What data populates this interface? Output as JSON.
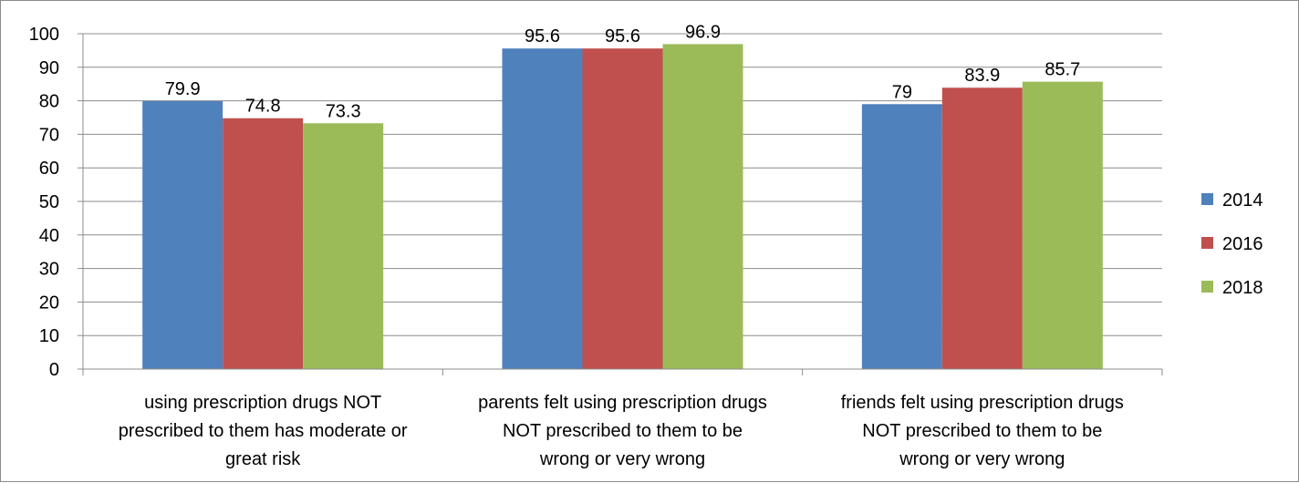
{
  "chart_data": {
    "type": "bar",
    "title": "",
    "xlabel": "",
    "ylabel": "",
    "ylim": [
      0,
      100
    ],
    "yticks": [
      0,
      10,
      20,
      30,
      40,
      50,
      60,
      70,
      80,
      90,
      100
    ],
    "grid": true,
    "legend_position": "right",
    "categories": [
      [
        "using prescription drugs NOT",
        "prescribed to them has moderate or",
        "great risk"
      ],
      [
        "parents felt using prescription drugs",
        "NOT prescribed to them to be",
        "wrong or very wrong"
      ],
      [
        "friends felt using prescription drugs",
        "NOT prescribed to them to be",
        "wrong or very wrong"
      ]
    ],
    "series": [
      {
        "name": "2014",
        "color": "#4f81bd",
        "values": [
          79.9,
          95.6,
          79
        ]
      },
      {
        "name": "2016",
        "color": "#c0504d",
        "values": [
          74.8,
          95.6,
          83.9
        ]
      },
      {
        "name": "2018",
        "color": "#9bbb59",
        "values": [
          73.3,
          96.9,
          85.7
        ]
      }
    ]
  }
}
